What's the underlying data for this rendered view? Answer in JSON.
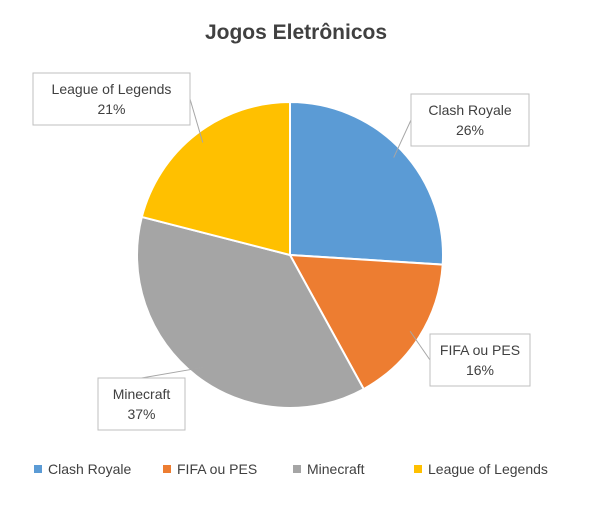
{
  "chart_data": {
    "type": "pie",
    "title": "Jogos Eletrônicos",
    "categories": [
      "Clash Royale",
      "FIFA ou PES",
      "Minecraft",
      "League of Legends"
    ],
    "values": [
      26,
      16,
      37,
      21
    ],
    "value_labels": [
      "26%",
      "16%",
      "37%",
      "21%"
    ],
    "colors": [
      "#5b9bd5",
      "#ed7d31",
      "#a5a5a5",
      "#ffc000"
    ],
    "legend_position": "bottom",
    "start_angle_deg": 0,
    "direction": "clockwise"
  }
}
